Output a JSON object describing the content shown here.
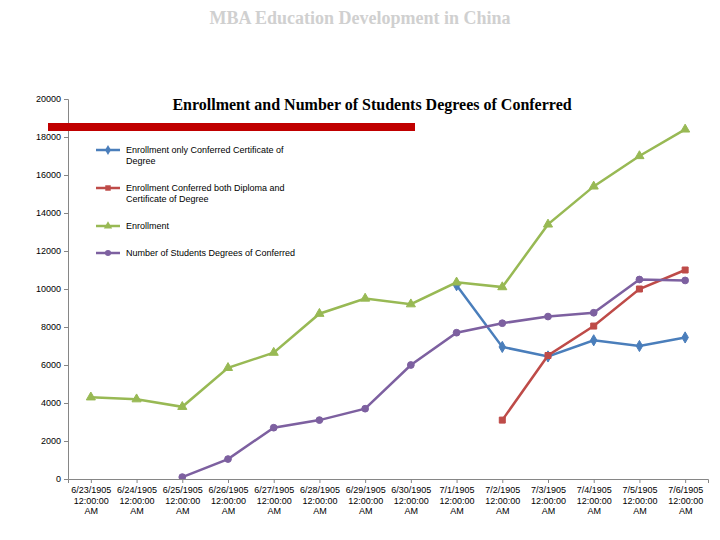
{
  "chart_data": {
    "type": "line",
    "subtitle": "MBA Education Development in China",
    "title": "Enrollment and Number of Students Degrees of Conferred",
    "categories": [
      "6/23/1905 12:00:00 AM",
      "6/24/1905 12:00:00 AM",
      "6/25/1905 12:00:00 AM",
      "6/26/1905 12:00:00 AM",
      "6/27/1905 12:00:00 AM",
      "6/28/1905 12:00:00 AM",
      "6/29/1905 12:00:00 AM",
      "6/30/1905 12:00:00 AM",
      "7/1/1905 12:00:00 AM",
      "7/2/1905 12:00:00 AM",
      "7/3/1905 12:00:00 AM",
      "7/4/1905 12:00:00 AM",
      "7/5/1905 12:00:00 AM",
      "7/6/1905 12:00:00 AM"
    ],
    "ylim": [
      0,
      20000
    ],
    "yticks": [
      0,
      2000,
      4000,
      6000,
      8000,
      10000,
      12000,
      14000,
      16000,
      18000,
      20000
    ],
    "legend": "upper left",
    "series": [
      {
        "name": "Enrollment only Conferred Certificate of Degree",
        "color": "#4a7ebb",
        "marker": "diamond",
        "values": [
          null,
          null,
          null,
          null,
          null,
          null,
          null,
          null,
          10200,
          6950,
          6450,
          7300,
          7000,
          7450
        ]
      },
      {
        "name": "Enrollment Conferred both Diploma and Certificate of Degree",
        "color": "#be4b48",
        "marker": "square",
        "values": [
          null,
          null,
          null,
          null,
          null,
          null,
          null,
          null,
          null,
          3100,
          6500,
          8050,
          10000,
          11000
        ]
      },
      {
        "name": "Enrollment",
        "color": "#98b954",
        "marker": "triangle",
        "values": [
          4300,
          4200,
          3800,
          5850,
          6650,
          8700,
          9500,
          9200,
          10350,
          10100,
          13400,
          15400,
          17000,
          18400
        ]
      },
      {
        "name": "Number of Students Degrees of Conferred",
        "color": "#7d60a0",
        "marker": "circle",
        "values": [
          null,
          null,
          100,
          1050,
          2700,
          3100,
          3700,
          6000,
          7700,
          8200,
          8550,
          8750,
          10500,
          10450
        ]
      }
    ]
  }
}
